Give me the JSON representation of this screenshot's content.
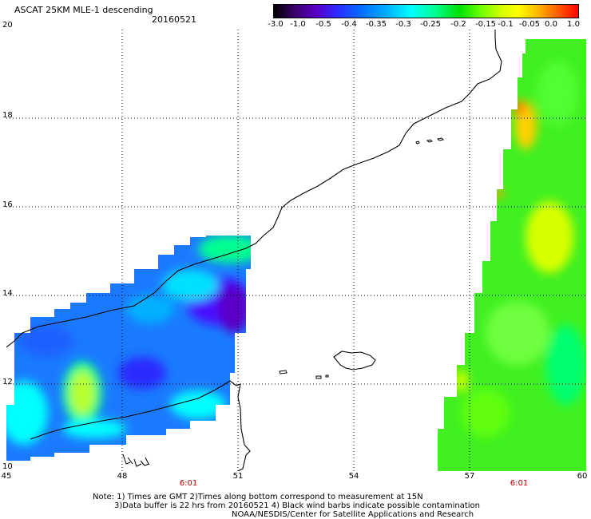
{
  "header": {
    "title": "ASCAT 25KM MLE-1 descending",
    "date": "20160521"
  },
  "colorbar": {
    "ticks": [
      "-3.0",
      "-1.0",
      "-0.5",
      "-0.4",
      "-0.35",
      "-0.3",
      "-0.25",
      "-0.2",
      "-0.15",
      "-0.1",
      "-0.05",
      "0.0",
      "1.0"
    ],
    "colors": [
      "#000000",
      "#5a00c8",
      "#2a2cff",
      "#00b0ff",
      "#00ffff",
      "#00e000",
      "#ffff00",
      "#ff6000",
      "#ff0000"
    ]
  },
  "map": {
    "lon_range": [
      45,
      60
    ],
    "lat_range": [
      10,
      20
    ],
    "lat_labels": [
      "20",
      "18",
      "16",
      "14",
      "12",
      "10"
    ],
    "lon_labels": [
      "45",
      "48",
      "51",
      "54",
      "57",
      "60"
    ],
    "time_labels": [
      "6:01",
      "6:01"
    ],
    "gridlines": "dotted",
    "background": "#ffffff",
    "coastline_color": "#000000"
  },
  "footer": {
    "line1": "Note: 1) Times are GMT 2)Times along bottom correspond to measurement at 15N",
    "line2": "3)Data buffer is 22 hrs from 20160521 4) Black wind barbs indicate possible contamination",
    "line3": "NOAA/NESDIS/Center for Satellite Applications and Research"
  }
}
